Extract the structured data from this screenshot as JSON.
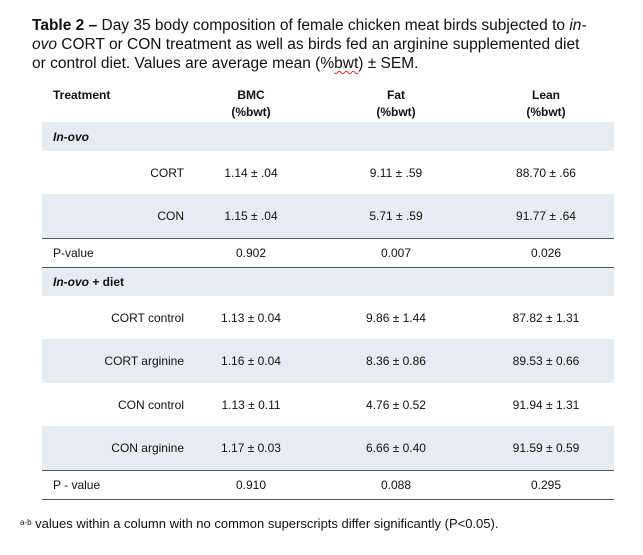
{
  "caption": {
    "label": "Table 2 –",
    "text_1": " Day 35 body composition of female chicken meat birds subjected to ",
    "italic_1": "in-ovo",
    "text_2": " CORT or CON treatment as well as birds fed an arginine supplemented diet or control diet. Values are average mean (%",
    "squiggle": "bwt",
    "text_3": ") ± SEM."
  },
  "header": {
    "treatment": "Treatment",
    "bmc": "BMC",
    "bmc_unit": "(%bwt)",
    "fat": "Fat",
    "fat_unit": "(%bwt)",
    "lean": "Lean",
    "lean_unit": "(%bwt)"
  },
  "section_1": {
    "label": "In-ovo"
  },
  "section_2": {
    "label_italic": "In-ovo",
    "label_rest": " + diet"
  },
  "rows_1": [
    {
      "label": "CORT",
      "bmc": "1.14 ± .04",
      "fat": "9.11 ± .59",
      "lean": "88.70 ± .66"
    },
    {
      "label": "CON",
      "bmc": "1.15 ± .04",
      "fat": "5.71 ± .59",
      "lean": "91.77 ± .64"
    }
  ],
  "pvalue_1": {
    "label": "P-value",
    "bmc": "0.902",
    "fat": "0.007",
    "lean": "0.026"
  },
  "rows_2": [
    {
      "label": "CORT control",
      "bmc": "1.13 ± 0.04",
      "fat": "9.86 ± 1.44",
      "lean": "87.82 ± 1.31"
    },
    {
      "label": "CORT arginine",
      "bmc": "1.16 ± 0.04",
      "fat": "8.36 ± 0.86",
      "lean": "89.53 ± 0.66"
    },
    {
      "label": "CON control",
      "bmc": "1.13 ± 0.11",
      "fat": "4.76 ± 0.52",
      "lean": "91.94 ± 1.31"
    },
    {
      "label": "CON arginine",
      "bmc": "1.17 ± 0.03",
      "fat": "6.66 ± 0.40",
      "lean": "91.59 ± 0.59"
    }
  ],
  "pvalue_2": {
    "label": "P - value",
    "bmc": "0.910",
    "fat": "0.088",
    "lean": "0.295"
  },
  "footnote": {
    "sup": "a-b",
    "text": " values within a column with no common superscripts differ significantly (P<0.05)."
  }
}
